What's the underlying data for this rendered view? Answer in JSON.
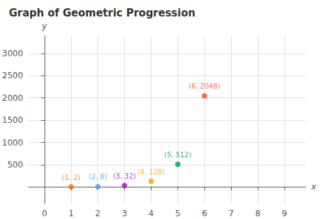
{
  "chart_data": {
    "type": "scatter",
    "title": "Graph of Geometric Progression",
    "x": [
      1,
      2,
      3,
      4,
      5,
      6
    ],
    "values": [
      2,
      8,
      32,
      128,
      512,
      2048
    ],
    "value_labels": [
      "(1, 2)",
      "(2, 8)",
      "(3, 32)",
      "(4, 128)",
      "(5, 512)",
      "(6, 2048)"
    ],
    "colors": [
      "#FF6600",
      "#4499FF",
      "#AA00CC",
      "#FF9900",
      "#009955",
      "#FF4422"
    ],
    "data_labels": true,
    "xlabel": "x",
    "ylabel": "y",
    "xlim": [
      -0.6,
      9.8
    ],
    "ylim": [
      -380,
      3400
    ],
    "xticks": [
      0,
      1,
      2,
      3,
      4,
      5,
      6,
      7,
      8,
      9
    ],
    "yticks": [
      500,
      1000,
      1500,
      2000,
      2500,
      3000
    ],
    "grid": true
  }
}
